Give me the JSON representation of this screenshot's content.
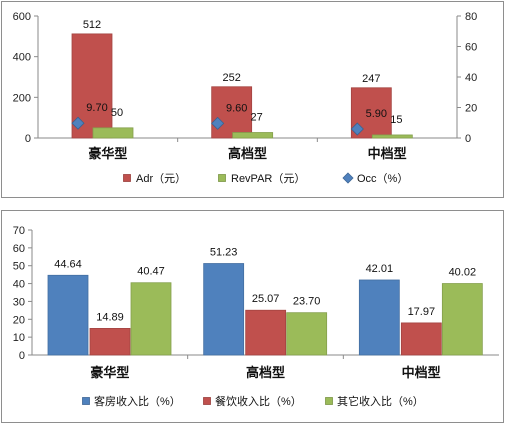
{
  "chart_data": [
    {
      "type": "bar",
      "categories": [
        "豪华型",
        "高档型",
        "中档型"
      ],
      "series": [
        {
          "name": "Adr（元）",
          "axis": "left",
          "kind": "bar",
          "color": "#c0504d",
          "values": [
            512,
            252,
            247
          ],
          "labels": [
            "512",
            "252",
            "247"
          ]
        },
        {
          "name": "RevPAR（元）",
          "axis": "left",
          "kind": "bar",
          "color": "#9bbb59",
          "values": [
            50,
            27,
            15
          ],
          "labels": [
            "50",
            "27",
            "15"
          ]
        },
        {
          "name": "Occ（%）",
          "axis": "right",
          "kind": "scatter",
          "color": "#4f81bd",
          "values": [
            9.7,
            9.6,
            5.9
          ],
          "labels": [
            "9.70",
            "9.60",
            "5.90"
          ]
        }
      ],
      "yleft": {
        "min": 0,
        "max": 600,
        "ticks": [
          "0",
          "200",
          "400",
          "600"
        ]
      },
      "yright": {
        "min": 0,
        "max": 80,
        "ticks": [
          "0",
          "20",
          "40",
          "60",
          "80"
        ]
      },
      "legend_position": "bottom",
      "grid": false
    },
    {
      "type": "bar",
      "categories": [
        "豪华型",
        "高档型",
        "中档型"
      ],
      "series": [
        {
          "name": "客房收入比（%）",
          "color": "#4f81bd",
          "values": [
            44.64,
            51.23,
            42.01
          ],
          "labels": [
            "44.64",
            "51.23",
            "42.01"
          ]
        },
        {
          "name": "餐饮收入比（%）",
          "color": "#c0504d",
          "values": [
            14.89,
            25.07,
            17.97
          ],
          "labels": [
            "14.89",
            "25.07",
            "17.97"
          ]
        },
        {
          "name": "其它收入比（%）",
          "color": "#9bbb59",
          "values": [
            40.47,
            23.7,
            40.02
          ],
          "labels": [
            "40.47",
            "23.70",
            "40.02"
          ]
        }
      ],
      "ylim": [
        0,
        70
      ],
      "yticks": [
        "0",
        "10",
        "20",
        "30",
        "40",
        "50",
        "60",
        "70"
      ],
      "legend_position": "bottom",
      "grid": false
    }
  ]
}
